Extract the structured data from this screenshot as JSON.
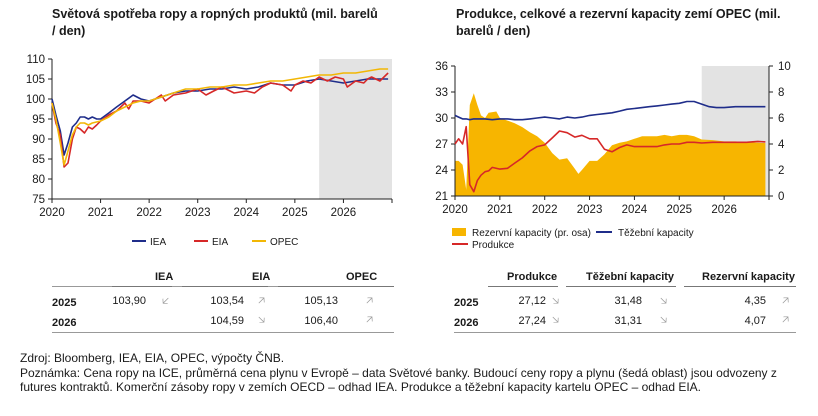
{
  "left_chart": {
    "title": "Světová spotřeba ropy a ropných produktů (mil. barelů / den)"
  },
  "right_chart": {
    "title": "Produkce, celkové a rezervní kapacity zemí OPEC (mil. barelů / den)"
  },
  "chart_data": [
    {
      "type": "line",
      "title": "Světová spotřeba ropy a ropných produktů (mil. barelů / den)",
      "x_ticks": [
        "2020",
        "2021",
        "2022",
        "2023",
        "2024",
        "2025",
        "2026"
      ],
      "xlim": [
        2020.0,
        2027.0
      ],
      "ylim": [
        75,
        110
      ],
      "y_ticks": [
        75,
        80,
        85,
        90,
        95,
        100,
        105,
        110
      ],
      "forecast_shade_from": 2025.5,
      "legend": "bottom",
      "colors": {
        "IEA": "#1f2d8a",
        "EIA": "#d62828",
        "OPEC": "#f2b705",
        "shade": "#e3e3e3"
      },
      "series": [
        {
          "name": "IEA",
          "x": [
            2020.0,
            2020.08,
            2020.17,
            2020.25,
            2020.33,
            2020.42,
            2020.5,
            2020.58,
            2020.67,
            2020.75,
            2020.83,
            2020.92,
            2021.0,
            2021.17,
            2021.33,
            2021.5,
            2021.67,
            2021.83,
            2022.0,
            2022.25,
            2022.5,
            2022.75,
            2023.0,
            2023.25,
            2023.5,
            2023.75,
            2024.0,
            2024.25,
            2024.5,
            2024.75,
            2025.0,
            2025.25,
            2025.5,
            2025.75,
            2026.0,
            2026.25,
            2026.5,
            2026.75,
            2026.92
          ],
          "y": [
            100,
            96,
            92,
            86,
            89,
            93,
            94,
            95.5,
            95.5,
            95,
            95.5,
            95,
            95,
            96.5,
            98,
            99.5,
            101,
            100,
            99.5,
            100.5,
            101.5,
            102,
            102,
            102.5,
            102.5,
            103,
            102.5,
            103,
            104,
            103.5,
            103.5,
            104.5,
            105,
            104.5,
            104,
            104.5,
            105,
            105,
            105
          ]
        },
        {
          "name": "EIA",
          "x": [
            2020.0,
            2020.08,
            2020.17,
            2020.25,
            2020.33,
            2020.42,
            2020.5,
            2020.58,
            2020.67,
            2020.75,
            2020.83,
            2020.92,
            2021.0,
            2021.17,
            2021.33,
            2021.5,
            2021.58,
            2021.67,
            2021.83,
            2022.0,
            2022.25,
            2022.33,
            2022.5,
            2022.75,
            2023.0,
            2023.17,
            2023.33,
            2023.5,
            2023.75,
            2024.0,
            2024.17,
            2024.33,
            2024.5,
            2024.75,
            2024.92,
            2025.0,
            2025.17,
            2025.33,
            2025.5,
            2025.67,
            2025.83,
            2026.0,
            2026.08,
            2026.25,
            2026.42,
            2026.5,
            2026.58,
            2026.75,
            2026.92
          ],
          "y": [
            99,
            94,
            91,
            83,
            84,
            90,
            93,
            92.5,
            91.5,
            93,
            92.5,
            93.5,
            94.5,
            96,
            97,
            99,
            97.5,
            99.5,
            99.5,
            99,
            101,
            99.5,
            101,
            101.5,
            102.5,
            101,
            102,
            103,
            101.5,
            102,
            101.5,
            103,
            104,
            103.5,
            102,
            103.5,
            104.5,
            104,
            105.5,
            104.5,
            105.5,
            105,
            103,
            104.5,
            104,
            105,
            105.5,
            104.5,
            106.5
          ]
        },
        {
          "name": "OPEC",
          "x": [
            2020.0,
            2020.08,
            2020.17,
            2020.25,
            2020.33,
            2020.42,
            2020.5,
            2020.58,
            2020.67,
            2020.75,
            2020.83,
            2021.0,
            2021.17,
            2021.33,
            2021.5,
            2021.67,
            2021.83,
            2022.0,
            2022.25,
            2022.5,
            2022.75,
            2023.0,
            2023.25,
            2023.5,
            2023.75,
            2024.0,
            2024.25,
            2024.5,
            2024.75,
            2025.0,
            2025.25,
            2025.5,
            2025.75,
            2026.0,
            2026.25,
            2026.5,
            2026.75,
            2026.92
          ],
          "y": [
            99,
            95,
            89,
            83.5,
            87,
            91,
            93,
            94,
            94,
            93.5,
            94,
            94.5,
            95.5,
            97,
            98,
            99,
            99.5,
            99.5,
            100.5,
            101.5,
            102.5,
            102.5,
            103,
            103,
            103.5,
            103.5,
            104,
            104.5,
            104.5,
            105,
            105.5,
            106,
            106,
            106.5,
            106.5,
            107,
            107.5,
            107.5
          ]
        }
      ]
    },
    {
      "type": "line",
      "title": "Produkce, celkové a rezervní kapacity zemí OPEC (mil. barelů / den)",
      "x_ticks": [
        "2020",
        "2021",
        "2022",
        "2023",
        "2024",
        "2025",
        "2026"
      ],
      "xlim": [
        2020.0,
        2027.0
      ],
      "ylim": [
        21,
        36
      ],
      "y_ticks": [
        21,
        24,
        27,
        30,
        33,
        36
      ],
      "y2lim": [
        0,
        10
      ],
      "y2_ticks": [
        0,
        2,
        4,
        6,
        8,
        10
      ],
      "forecast_shade_from": 2025.5,
      "legend": "bottom",
      "colors": {
        "Rezervní kapacity (pr. osa)": "#f7b500",
        "Těžební kapacity": "#1f2d8a",
        "Produkce": "#d62828",
        "shade": "#e3e3e3"
      },
      "series": [
        {
          "name": "Rezervní kapacity (pr. osa)",
          "axis": "right",
          "kind": "area",
          "x": [
            2020.0,
            2020.08,
            2020.17,
            2020.25,
            2020.33,
            2020.42,
            2020.5,
            2020.58,
            2020.67,
            2020.75,
            2020.92,
            2021.0,
            2021.17,
            2021.33,
            2021.5,
            2021.67,
            2021.83,
            2022.0,
            2022.17,
            2022.33,
            2022.5,
            2022.67,
            2022.75,
            2022.83,
            2023.0,
            2023.17,
            2023.33,
            2023.5,
            2023.67,
            2023.83,
            2024.0,
            2024.17,
            2024.33,
            2024.5,
            2024.67,
            2024.83,
            2025.0,
            2025.17,
            2025.33,
            2025.5,
            2025.75,
            2026.0,
            2026.25,
            2026.5,
            2026.75,
            2026.92
          ],
          "y": [
            2.7,
            2.7,
            2.4,
            0.5,
            7.0,
            7.9,
            7.0,
            6.2,
            6.0,
            6.4,
            6.5,
            6.0,
            5.8,
            5.6,
            5.3,
            4.9,
            4.6,
            4.1,
            3.3,
            2.8,
            2.9,
            2.1,
            1.7,
            2.0,
            2.7,
            2.7,
            3.2,
            3.9,
            4.1,
            4.2,
            4.4,
            4.6,
            4.6,
            4.6,
            4.7,
            4.6,
            4.7,
            4.7,
            4.6,
            4.35,
            4.3,
            4.2,
            4.2,
            4.15,
            4.1,
            4.07
          ]
        },
        {
          "name": "Těžební kapacity",
          "axis": "left",
          "x": [
            2020.0,
            2020.08,
            2020.17,
            2020.25,
            2020.33,
            2020.42,
            2020.5,
            2020.67,
            2020.83,
            2021.0,
            2021.17,
            2021.33,
            2021.5,
            2021.67,
            2021.83,
            2022.0,
            2022.17,
            2022.33,
            2022.5,
            2022.67,
            2022.83,
            2023.0,
            2023.17,
            2023.33,
            2023.5,
            2023.67,
            2023.83,
            2024.0,
            2024.17,
            2024.33,
            2024.5,
            2024.67,
            2024.83,
            2025.0,
            2025.17,
            2025.33,
            2025.5,
            2025.67,
            2025.83,
            2026.0,
            2026.25,
            2026.5,
            2026.75,
            2026.92
          ],
          "y": [
            30.3,
            30.1,
            29.9,
            29.9,
            29.8,
            29.9,
            29.9,
            29.9,
            29.8,
            29.9,
            29.9,
            29.8,
            29.8,
            29.9,
            30.0,
            30.1,
            30.0,
            29.9,
            30.1,
            30.0,
            30.1,
            30.3,
            30.4,
            30.5,
            30.6,
            30.8,
            31.0,
            31.1,
            31.2,
            31.3,
            31.4,
            31.5,
            31.6,
            31.7,
            31.9,
            31.9,
            31.6,
            31.3,
            31.2,
            31.2,
            31.3,
            31.3,
            31.3,
            31.3
          ]
        },
        {
          "name": "Produkce",
          "axis": "left",
          "x": [
            2020.0,
            2020.08,
            2020.17,
            2020.25,
            2020.33,
            2020.42,
            2020.5,
            2020.58,
            2020.67,
            2020.75,
            2020.83,
            2021.0,
            2021.17,
            2021.33,
            2021.5,
            2021.67,
            2021.83,
            2022.0,
            2022.17,
            2022.33,
            2022.5,
            2022.67,
            2022.83,
            2023.0,
            2023.17,
            2023.33,
            2023.5,
            2023.67,
            2023.83,
            2024.0,
            2024.17,
            2024.33,
            2024.5,
            2024.67,
            2024.83,
            2025.0,
            2025.17,
            2025.33,
            2025.5,
            2025.75,
            2026.0,
            2026.25,
            2026.5,
            2026.75,
            2026.92
          ],
          "y": [
            27.0,
            27.6,
            27.0,
            29.0,
            22.3,
            21.5,
            22.8,
            23.4,
            23.8,
            23.9,
            24.3,
            24.1,
            24.2,
            24.8,
            25.4,
            26.2,
            26.7,
            26.9,
            27.7,
            28.5,
            28.3,
            27.8,
            28.0,
            27.6,
            27.6,
            26.4,
            26.1,
            26.6,
            26.9,
            26.7,
            26.7,
            26.7,
            26.7,
            26.9,
            27.0,
            27.0,
            27.2,
            27.2,
            27.12,
            27.2,
            27.2,
            27.2,
            27.2,
            27.3,
            27.24
          ]
        }
      ]
    }
  ],
  "left_table": {
    "headers": [
      "IEA",
      "EIA",
      "OPEC"
    ],
    "rows": [
      {
        "year": "2025",
        "values": [
          "103,90",
          "103,54",
          "105,13"
        ],
        "arrows": [
          "sw-arrow",
          "ne-arrow",
          "ne-arrow"
        ]
      },
      {
        "year": "2026",
        "values": [
          "",
          "104,59",
          "106,40"
        ],
        "arrows": [
          "",
          "se-arrow",
          "ne-arrow"
        ]
      }
    ]
  },
  "right_table": {
    "headers": [
      "Produkce",
      "Těžební kapacity",
      "Rezervní kapacity"
    ],
    "rows": [
      {
        "year": "2025",
        "values": [
          "27,12",
          "31,48",
          "4,35"
        ],
        "arrows": [
          "se-arrow",
          "se-arrow",
          "ne-arrow"
        ]
      },
      {
        "year": "2026",
        "values": [
          "27,24",
          "31,31",
          "4,07"
        ],
        "arrows": [
          "se-arrow",
          "se-arrow",
          "ne-arrow"
        ]
      }
    ]
  },
  "notes": {
    "source": "Zdroj: Bloomberg, IEA, EIA, OPEC,  výpočty ČNB.",
    "note": "Poznámka: Cena ropy na ICE, průměrná cena plynu v Evropě – data Světové banky. Budoucí ceny ropy a plynu (šedá oblast) jsou odvozeny z futures kontraktů. Komerční zásoby ropy v zemích OECD – odhad IEA. Produkce a těžební kapacity kartelu OPEC – odhad EIA."
  }
}
